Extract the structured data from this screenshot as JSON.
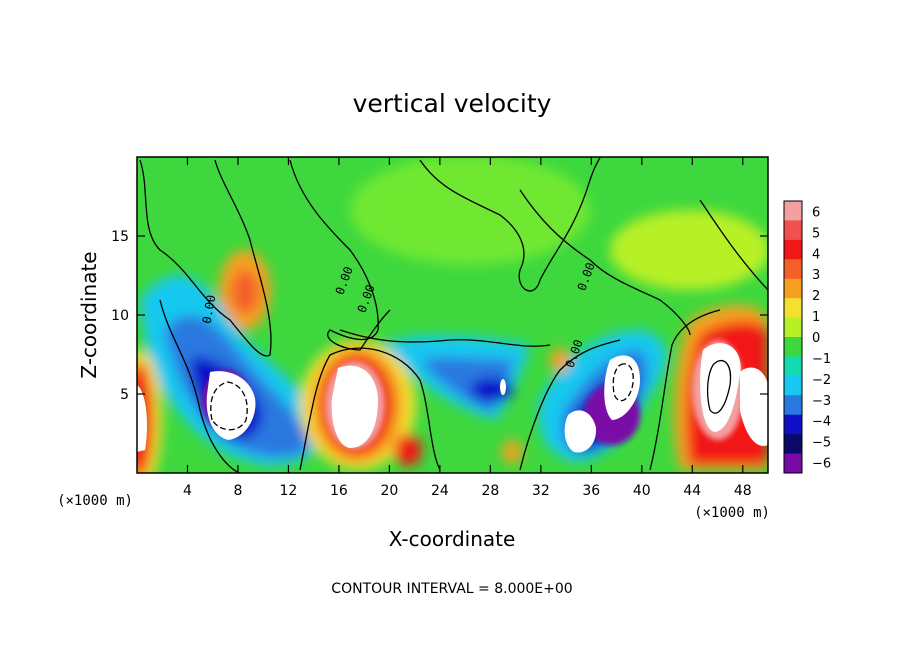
{
  "chart_data": {
    "type": "heatmap",
    "title": "vertical velocity",
    "xlabel": "X-coordinate",
    "ylabel": "Z-coordinate",
    "x_unit_left": "(×1000 m)",
    "x_unit_right": "(×1000 m)",
    "xlim": [
      0,
      50
    ],
    "ylim": [
      0,
      20
    ],
    "x_ticks": [
      4,
      8,
      12,
      16,
      20,
      24,
      28,
      32,
      36,
      40,
      44,
      48
    ],
    "y_ticks": [
      5,
      10,
      15
    ],
    "colorbar": {
      "ticks": [
        6,
        5,
        4,
        3,
        2,
        1,
        0,
        -1,
        -2,
        -3,
        -4,
        -5,
        -6
      ],
      "colors": [
        "#f4a0a0",
        "#f25050",
        "#f21818",
        "#f4602a",
        "#f7a020",
        "#f4e030",
        "#b8f028",
        "#3ed83e",
        "#10dcb0",
        "#18c8f0",
        "#2a78e0",
        "#1010c8",
        "#0a0a6a",
        "#7a0aa6"
      ]
    },
    "contour_label": "0.00",
    "contour_interval_text": "CONTOUR INTERVAL = 8.000E+00",
    "features": [
      {
        "name": "updraft core",
        "x": 1,
        "z": 3,
        "w": 9
      },
      {
        "name": "downdraft core",
        "x": 7.5,
        "z": 4.5,
        "w": -10
      },
      {
        "name": "updraft core",
        "x": 18,
        "z": 4.2,
        "w": 12
      },
      {
        "name": "downdraft",
        "x": 28,
        "z": 5,
        "w": -6
      },
      {
        "name": "downdraft core",
        "x": 35,
        "z": 2.8,
        "w": -9
      },
      {
        "name": "downdraft core",
        "x": 38.5,
        "z": 5,
        "w": -8
      },
      {
        "name": "updraft core",
        "x": 46,
        "z": 6,
        "w": 10
      },
      {
        "name": "updraft core",
        "x": 49,
        "z": 4,
        "w": 9
      }
    ]
  }
}
